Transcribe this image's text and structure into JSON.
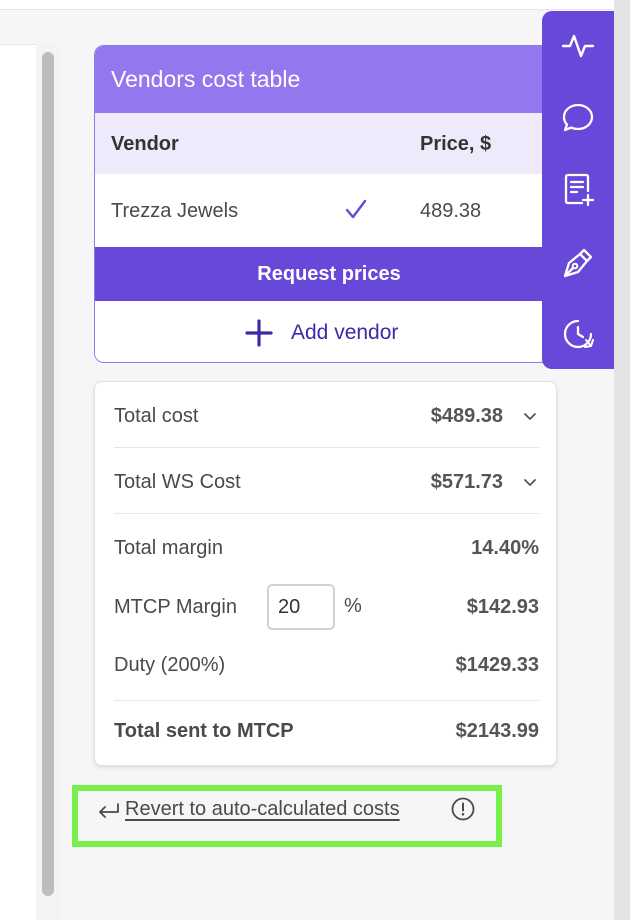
{
  "vendors_table": {
    "title": "Vendors cost table",
    "columns": [
      "Vendor",
      "Price, $"
    ],
    "rows": [
      {
        "vendor": "Trezza Jewels",
        "selected": true,
        "price": "489.38"
      }
    ],
    "request_button": "Request prices",
    "add_vendor": "Add vendor"
  },
  "side_toolbar": {
    "icons": [
      "activity-icon",
      "comment-icon",
      "add-note-icon",
      "pen-icon",
      "history-icon"
    ]
  },
  "cost_summary": {
    "total_cost": {
      "label": "Total cost",
      "value": "$489.38"
    },
    "total_ws_cost": {
      "label": "Total WS Cost",
      "value": "$571.73"
    },
    "total_margin": {
      "label": "Total margin",
      "value": "14.40%"
    },
    "mtcp_margin": {
      "label": "MTCP Margin",
      "input_value": "20",
      "unit": "%",
      "value": "$142.93"
    },
    "duty": {
      "label": "Duty (200%)",
      "value": "$1429.33"
    },
    "total_sent": {
      "label": "Total sent to MTCP",
      "value": "$2143.99"
    }
  },
  "revert": {
    "label": "Revert to auto-calculated costs"
  },
  "colors": {
    "accent": "#6848d8",
    "header": "#9477ee",
    "header_tint": "#efeafb",
    "highlight": "#76f04a"
  }
}
